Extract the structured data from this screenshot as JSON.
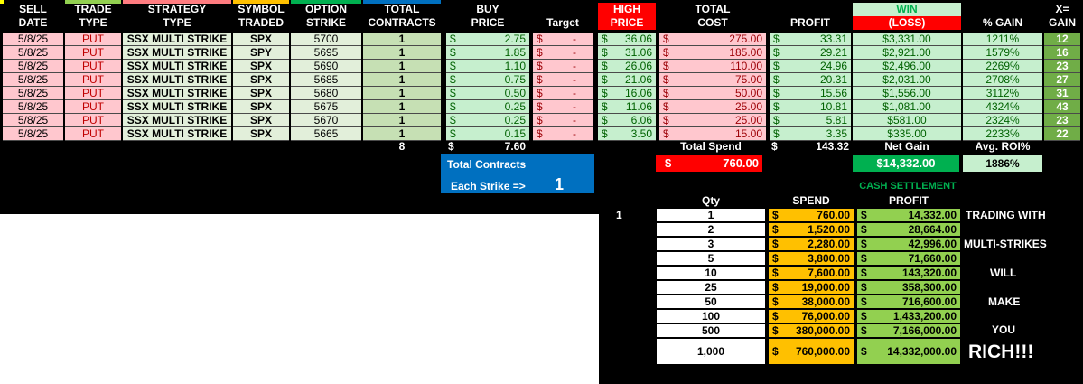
{
  "header": {
    "sell": [
      "SELL",
      "DATE"
    ],
    "trade": [
      "TRADE",
      "TYPE"
    ],
    "strategy": [
      "STRATEGY",
      "TYPE"
    ],
    "symbol": [
      "SYMBOL",
      "TRADED"
    ],
    "option": [
      "OPTION",
      "STRIKE"
    ],
    "contracts": [
      "TOTAL",
      "CONTRACTS"
    ],
    "buy": [
      "BUY",
      "PRICE"
    ],
    "target": "Target",
    "high": [
      "HIGH",
      "PRICE"
    ],
    "cost": [
      "TOTAL",
      "COST"
    ],
    "profit": "PROFIT",
    "winloss": [
      "WIN",
      "(LOSS)"
    ],
    "gain": "% GAIN",
    "x": [
      "X=",
      "GAIN"
    ]
  },
  "rows": [
    {
      "date": "5/8/25",
      "type": "PUT",
      "strategy": "SSX MULTI STRIKE",
      "symbol": "SPX",
      "strike": "5700",
      "contracts": "1",
      "buy": "2.75",
      "target": "-",
      "high": "36.06",
      "cost": "275.00",
      "profit": "33.31",
      "winloss": "$3,331.00",
      "gain": "1211%",
      "x": "12"
    },
    {
      "date": "5/8/25",
      "type": "PUT",
      "strategy": "SSX MULTI STRIKE",
      "symbol": "SPY",
      "strike": "5695",
      "contracts": "1",
      "buy": "1.85",
      "target": "-",
      "high": "31.06",
      "cost": "185.00",
      "profit": "29.21",
      "winloss": "$2,921.00",
      "gain": "1579%",
      "x": "16"
    },
    {
      "date": "5/8/25",
      "type": "PUT",
      "strategy": "SSX MULTI STRIKE",
      "symbol": "SPX",
      "strike": "5690",
      "contracts": "1",
      "buy": "1.10",
      "target": "-",
      "high": "26.06",
      "cost": "110.00",
      "profit": "24.96",
      "winloss": "$2,496.00",
      "gain": "2269%",
      "x": "23"
    },
    {
      "date": "5/8/25",
      "type": "PUT",
      "strategy": "SSX MULTI STRIKE",
      "symbol": "SPX",
      "strike": "5685",
      "contracts": "1",
      "buy": "0.75",
      "target": "-",
      "high": "21.06",
      "cost": "75.00",
      "profit": "20.31",
      "winloss": "$2,031.00",
      "gain": "2708%",
      "x": "27"
    },
    {
      "date": "5/8/25",
      "type": "PUT",
      "strategy": "SSX MULTI STRIKE",
      "symbol": "SPX",
      "strike": "5680",
      "contracts": "1",
      "buy": "0.50",
      "target": "-",
      "high": "16.06",
      "cost": "50.00",
      "profit": "15.56",
      "winloss": "$1,556.00",
      "gain": "3112%",
      "x": "31"
    },
    {
      "date": "5/8/25",
      "type": "PUT",
      "strategy": "SSX MULTI STRIKE",
      "symbol": "SPX",
      "strike": "5675",
      "contracts": "1",
      "buy": "0.25",
      "target": "-",
      "high": "11.06",
      "cost": "25.00",
      "profit": "10.81",
      "winloss": "$1,081.00",
      "gain": "4324%",
      "x": "43"
    },
    {
      "date": "5/8/25",
      "type": "PUT",
      "strategy": "SSX MULTI STRIKE",
      "symbol": "SPX",
      "strike": "5670",
      "contracts": "1",
      "buy": "0.25",
      "target": "-",
      "high": "6.06",
      "cost": "25.00",
      "profit": "5.81",
      "winloss": "$581.00",
      "gain": "2324%",
      "x": "23"
    },
    {
      "date": "5/8/25",
      "type": "PUT",
      "strategy": "SSX MULTI STRIKE",
      "symbol": "SPX",
      "strike": "5665",
      "contracts": "1",
      "buy": "0.15",
      "target": "-",
      "high": "3.50",
      "cost": "15.00",
      "profit": "3.35",
      "winloss": "$335.00",
      "gain": "2233%",
      "x": "22"
    }
  ],
  "currency": "$",
  "totals": {
    "contracts": "8",
    "buy_total": "7.60",
    "total_spend_label": "Total Spend",
    "profit_total": "143.32",
    "net_gain_label": "Net Gain",
    "avg_roi_label": "Avg. ROI%",
    "spend_box": "760.00",
    "net_gain": "$14,332.00",
    "avg_roi": "1886%"
  },
  "contracts_box": {
    "title": "Total Contracts",
    "each_label": "Each Strike =>",
    "each_value": "1"
  },
  "settlement": {
    "title": "CASH SETTLEMENT",
    "left_number": "1",
    "qty_header": "Qty",
    "spend_header": "SPEND",
    "profit_header": "PROFIT",
    "rows": [
      {
        "qty": "1",
        "spend": "760.00",
        "profit": "14,332.00"
      },
      {
        "qty": "2",
        "spend": "1,520.00",
        "profit": "28,664.00"
      },
      {
        "qty": "3",
        "spend": "2,280.00",
        "profit": "42,996.00"
      },
      {
        "qty": "5",
        "spend": "3,800.00",
        "profit": "71,660.00"
      },
      {
        "qty": "10",
        "spend": "7,600.00",
        "profit": "143,320.00"
      },
      {
        "qty": "25",
        "spend": "19,000.00",
        "profit": "358,300.00"
      },
      {
        "qty": "50",
        "spend": "38,000.00",
        "profit": "716,600.00"
      },
      {
        "qty": "100",
        "spend": "76,000.00",
        "profit": "1,433,200.00"
      },
      {
        "qty": "500",
        "spend": "380,000.00",
        "profit": "7,166,000.00"
      },
      {
        "qty": "1,000",
        "spend": "760,000.00",
        "profit": "14,332,000.00"
      }
    ],
    "side_text": [
      "TRADING WITH",
      "MULTI-STRIKES",
      "WILL",
      "MAKE",
      "YOU"
    ],
    "rich": "RICH!!!"
  },
  "colors": {
    "green_light": "#c6efce",
    "green_dark": "#92d050",
    "green_strong": "#00b050",
    "red_light": "#ffc7ce",
    "red_strong": "#ff0000",
    "blue_box": "#0070c0",
    "orange": "#ffc000",
    "dark_green_text": "#006100"
  }
}
